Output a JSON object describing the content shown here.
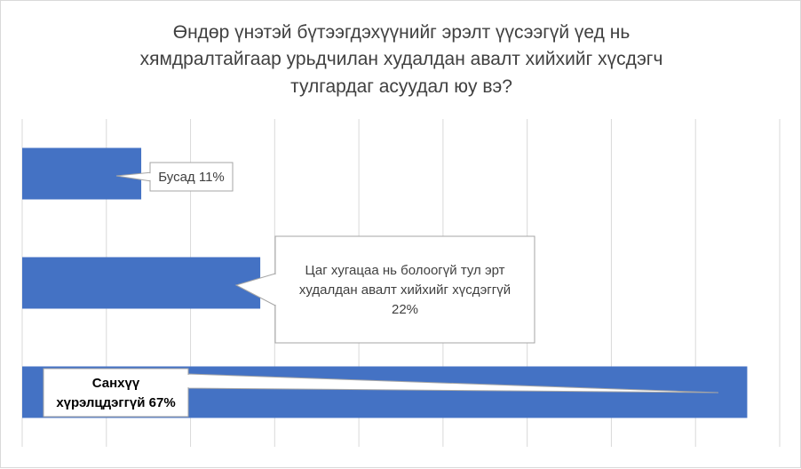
{
  "chart_data": {
    "type": "bar",
    "orientation": "horizontal",
    "title": "Өндөр үнэтэй бүтээгдэхүүнийг эрэлт үүсээгүй үед нь хямдралтайгаар урьдчилан худалдан авалт хийхийг хүсдэгч тулгардаг асуудал юу вэ?",
    "title_lines": [
      "Өндөр үнэтэй бүтээгдэхүүнийг эрэлт үүсээгүй үед нь",
      "хямдралтайгаар урьдчилан худалдан авалт хийхийг хүсдэгч",
      "тулгардаг асуудал юу вэ?"
    ],
    "categories": [
      "Бусад",
      "Цаг хугацаа нь болоогүй тул эрт худалдан авалт хийхийг хүсдэггүй",
      "Санхүү хүрэлцдэггүй"
    ],
    "values": [
      11,
      22,
      67
    ],
    "unit": "%",
    "xlim": [
      0,
      70
    ],
    "grid": true,
    "legend": "none",
    "bar_color": "#4472c4",
    "grid_color": "#d9d9d9",
    "data_labels": [
      {
        "lines": [
          "Бусад 11%"
        ],
        "bold": false
      },
      {
        "lines": [
          "Цаг хугацаа нь болоогүй тул эрт",
          "худалдан авалт хийхийг хүсдэггүй",
          "22%"
        ],
        "bold": false
      },
      {
        "lines": [
          "Санхүү",
          "хүрэлцдэггүй 67%"
        ],
        "bold": true
      }
    ]
  }
}
